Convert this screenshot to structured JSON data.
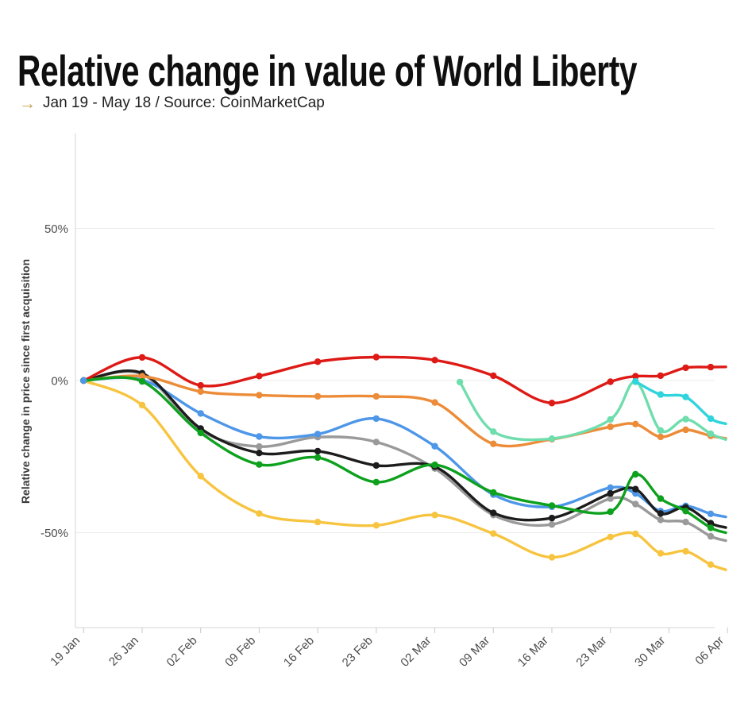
{
  "header": {
    "title": "Relative change in value of World Liberty",
    "subtitle_arrow": "→",
    "subtitle": "Jan 19 - May 18 / Source: CoinMarketCap"
  },
  "chart_data": {
    "type": "line",
    "title": "Relative change in value of World Liberty",
    "subtitle": "Jan 19 - May 18 / Source: CoinMarketCap",
    "xlabel": "",
    "ylabel": "Relative change in price since first acquisition",
    "x_unit": "days since 19 Jan",
    "xlim": [
      0,
      77
    ],
    "ylim": [
      -81,
      81
    ],
    "grid": "horizontal",
    "legend": "none",
    "y_ticks": [
      {
        "value": 50,
        "label": "50%"
      },
      {
        "value": 0,
        "label": "0%"
      },
      {
        "value": -50,
        "label": "-50%"
      }
    ],
    "x_ticks": [
      {
        "day": 0,
        "label": "19 Jan"
      },
      {
        "day": 7,
        "label": "26 Jan"
      },
      {
        "day": 14,
        "label": "02 Feb"
      },
      {
        "day": 21,
        "label": "09 Feb"
      },
      {
        "day": 28,
        "label": "16 Feb"
      },
      {
        "day": 35,
        "label": "23 Feb"
      },
      {
        "day": 42,
        "label": "02 Mar"
      },
      {
        "day": 49,
        "label": "09 Mar"
      },
      {
        "day": 56,
        "label": "16 Mar"
      },
      {
        "day": 63,
        "label": "23 Mar"
      },
      {
        "day": 70,
        "label": "30 Mar"
      },
      {
        "day": 77,
        "label": "06 Apr"
      }
    ],
    "top_origin_series": "blue",
    "series": [
      {
        "name": "yellow",
        "color": "#f7c440",
        "points": [
          [
            0,
            0
          ],
          [
            7,
            -8.1
          ],
          [
            14,
            -31.4
          ],
          [
            21,
            -43.7
          ],
          [
            28,
            -46.5
          ],
          [
            35,
            -47.6
          ],
          [
            42,
            -44.2
          ],
          [
            49,
            -50.3
          ],
          [
            56,
            -58.1
          ],
          [
            63,
            -51.4
          ],
          [
            66,
            -50.4
          ],
          [
            69,
            -56.8
          ],
          [
            72,
            -56.1
          ],
          [
            75,
            -60.5
          ]
        ],
        "edge": [
          76.8,
          -62.2
        ]
      },
      {
        "name": "gray",
        "color": "#9a9a9a",
        "points": [
          [
            0,
            0
          ],
          [
            7,
            2.1
          ],
          [
            14,
            -16.4
          ],
          [
            21,
            -21.7
          ],
          [
            28,
            -18.6
          ],
          [
            35,
            -20.2
          ],
          [
            42,
            -28.9
          ],
          [
            49,
            -44.2
          ],
          [
            56,
            -47.3
          ],
          [
            63,
            -38.8
          ],
          [
            66,
            -40.6
          ],
          [
            69,
            -45.8
          ],
          [
            72,
            -46.5
          ],
          [
            75,
            -51.2
          ]
        ],
        "edge": [
          76.8,
          -52.6
        ]
      },
      {
        "name": "blue",
        "color": "#4d96e8",
        "points": [
          [
            0,
            0
          ],
          [
            7,
            0.2
          ],
          [
            14,
            -10.8
          ],
          [
            21,
            -18.4
          ],
          [
            28,
            -17.6
          ],
          [
            35,
            -12.5
          ],
          [
            42,
            -21.6
          ],
          [
            49,
            -37.5
          ],
          [
            56,
            -41.5
          ],
          [
            63,
            -35.2
          ],
          [
            66,
            -37.1
          ],
          [
            69,
            -42.9
          ],
          [
            72,
            -41.2
          ],
          [
            75,
            -43.8
          ]
        ],
        "edge": [
          76.8,
          -44.8
        ]
      },
      {
        "name": "black",
        "color": "#1c1c1c",
        "points": [
          [
            0,
            0
          ],
          [
            7,
            2.4
          ],
          [
            14,
            -15.8
          ],
          [
            21,
            -23.8
          ],
          [
            28,
            -23.2
          ],
          [
            35,
            -27.9
          ],
          [
            42,
            -28.3
          ],
          [
            49,
            -43.5
          ],
          [
            56,
            -45.2
          ],
          [
            63,
            -37.1
          ],
          [
            66,
            -35.7
          ],
          [
            69,
            -43.7
          ],
          [
            72,
            -41.7
          ],
          [
            75,
            -46.9
          ]
        ],
        "edge": [
          76.8,
          -48.3
        ]
      },
      {
        "name": "orange",
        "color": "#ec8c38",
        "points": [
          [
            0,
            0
          ],
          [
            7,
            1.4
          ],
          [
            14,
            -3.6
          ],
          [
            21,
            -4.8
          ],
          [
            28,
            -5.2
          ],
          [
            35,
            -5.2
          ],
          [
            42,
            -7.2
          ],
          [
            49,
            -20.8
          ],
          [
            56,
            -19.3
          ],
          [
            63,
            -15.2
          ],
          [
            66,
            -14.3
          ],
          [
            69,
            -18.5
          ],
          [
            72,
            -16.2
          ],
          [
            75,
            -18.2
          ]
        ],
        "edge": [
          76.8,
          -19.0
        ]
      },
      {
        "name": "red",
        "color": "#dd1a15",
        "points": [
          [
            0,
            0
          ],
          [
            7,
            7.6
          ],
          [
            14,
            -1.6
          ],
          [
            21,
            1.5
          ],
          [
            28,
            6.2
          ],
          [
            35,
            7.7
          ],
          [
            42,
            6.7
          ],
          [
            49,
            1.6
          ],
          [
            56,
            -7.4
          ],
          [
            63,
            -0.4
          ],
          [
            66,
            1.4
          ],
          [
            69,
            1.6
          ],
          [
            72,
            4.2
          ],
          [
            75,
            4.4
          ]
        ],
        "edge": [
          76.8,
          4.5
        ]
      },
      {
        "name": "green",
        "color": "#0da11e",
        "points": [
          [
            0,
            0
          ],
          [
            7,
            -0.3
          ],
          [
            14,
            -17.2
          ],
          [
            21,
            -27.6
          ],
          [
            28,
            -25.3
          ],
          [
            35,
            -33.4
          ],
          [
            42,
            -27.7
          ],
          [
            49,
            -36.8
          ],
          [
            56,
            -41.1
          ],
          [
            63,
            -43.1
          ],
          [
            66,
            -30.8
          ],
          [
            69,
            -38.8
          ],
          [
            72,
            -42.9
          ],
          [
            75,
            -48.4
          ]
        ],
        "edge": [
          76.8,
          -50.0
        ]
      },
      {
        "name": "mint",
        "color": "#70ddad",
        "points": [
          [
            45,
            -0.5
          ],
          [
            49,
            -16.8
          ],
          [
            56,
            -19.1
          ],
          [
            63,
            -12.8
          ],
          [
            66,
            -0.4
          ],
          [
            69,
            -16.4
          ],
          [
            72,
            -12.7
          ],
          [
            75,
            -17.5
          ]
        ],
        "edge": [
          76.8,
          -19.4
        ]
      },
      {
        "name": "cyan",
        "color": "#30d4dc",
        "points": [
          [
            66,
            -0.3
          ],
          [
            69,
            -4.6
          ],
          [
            72,
            -5.4
          ],
          [
            75,
            -12.5
          ]
        ],
        "edge": [
          76.8,
          -14.2
        ]
      }
    ]
  }
}
